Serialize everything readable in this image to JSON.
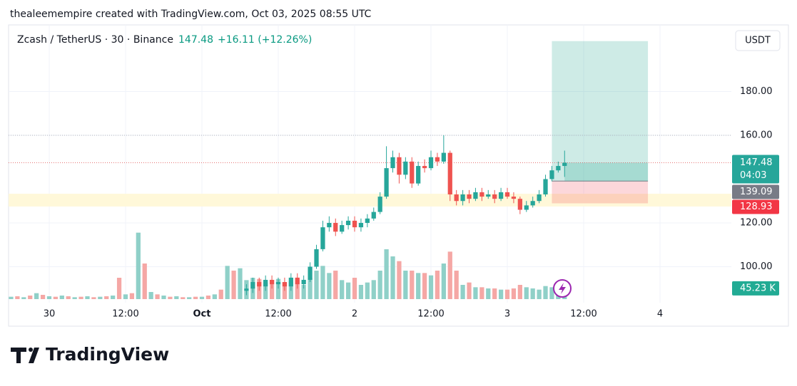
{
  "chart_data": {
    "type": "candlestick",
    "header": "thealeemempire created with TradingView.com, Oct 03, 2025 08:55 UTC",
    "title": "Zcash / TetherUS · 30 · Binance",
    "change": "+16.11 (+12.26%)",
    "countdown": "04:03",
    "currency": "USDT",
    "footer": "TradingView",
    "x": [
      31,
      32,
      33,
      34,
      35,
      36,
      37,
      38,
      39,
      40,
      41,
      42,
      43,
      44,
      45,
      46,
      47,
      48,
      49,
      50,
      51,
      52,
      53,
      54,
      55,
      56,
      57,
      58,
      59,
      60,
      61,
      62,
      63,
      64,
      65,
      66,
      67,
      68,
      69,
      70,
      71,
      72,
      73,
      74,
      75,
      76,
      77,
      78,
      79,
      80,
      81
    ],
    "open": [
      89,
      90,
      93,
      91,
      94,
      92,
      93,
      91,
      95,
      92,
      94,
      100,
      108,
      118,
      120,
      116,
      119,
      121,
      118,
      120,
      122,
      125,
      132,
      145,
      150,
      142,
      148,
      138,
      146,
      145,
      150,
      148,
      152,
      133,
      130,
      133,
      131,
      134,
      132,
      133,
      131,
      134,
      132,
      131,
      126,
      128,
      130,
      133,
      140,
      144,
      146
    ],
    "high": [
      92,
      95,
      95,
      96,
      96,
      95,
      95,
      97,
      97,
      96,
      102,
      110,
      121,
      123,
      122,
      121,
      123,
      123,
      122,
      124,
      127,
      134,
      155,
      153,
      152,
      150,
      150,
      148,
      149,
      153,
      152,
      160,
      153,
      135,
      135,
      135,
      136,
      136,
      135,
      135,
      136,
      136,
      134,
      132,
      130,
      132,
      135,
      142,
      146,
      148,
      153
    ],
    "low": [
      87,
      88,
      89,
      89,
      90,
      90,
      89,
      89,
      90,
      90,
      93,
      99,
      107,
      116,
      114,
      115,
      117,
      116,
      116,
      118,
      121,
      124,
      131,
      143,
      138,
      140,
      136,
      137,
      143,
      144,
      146,
      147,
      130,
      128,
      128,
      129,
      130,
      130,
      131,
      129,
      130,
      131,
      129,
      124,
      125,
      127,
      129,
      132,
      139,
      143,
      141
    ],
    "close": [
      90,
      93,
      91,
      94,
      92,
      93,
      91,
      95,
      92,
      94,
      100,
      108,
      118,
      120,
      116,
      119,
      121,
      118,
      120,
      122,
      125,
      132,
      145,
      150,
      142,
      148,
      138,
      146,
      145,
      150,
      148,
      152,
      133,
      130,
      133,
      131,
      134,
      132,
      133,
      131,
      134,
      132,
      131,
      126,
      128,
      130,
      133,
      140,
      144,
      146,
      147.48
    ],
    "up_color": "#26a69a",
    "down_color": "#ef5350",
    "volume": [
      {
        "name": "up",
        "color": "#8fd0c8",
        "x": [
          -6,
          -4,
          -2,
          0,
          2,
          4,
          6,
          8,
          10,
          12,
          14,
          16,
          18,
          20,
          22,
          24,
          26,
          28,
          30,
          31,
          32,
          34,
          36,
          38,
          40,
          41,
          42,
          43,
          44,
          46,
          47,
          49,
          50,
          51,
          52,
          53,
          54,
          56,
          58,
          60,
          62,
          65,
          67,
          69,
          71,
          75,
          76,
          77,
          78,
          79,
          80,
          81
        ],
        "values": [
          10,
          8,
          25,
          12,
          15,
          8,
          12,
          10,
          15,
          20,
          280,
          30,
          15,
          12,
          8,
          10,
          20,
          140,
          130,
          80,
          90,
          70,
          85,
          75,
          60,
          90,
          120,
          140,
          110,
          80,
          70,
          60,
          70,
          80,
          120,
          210,
          180,
          120,
          110,
          100,
          150,
          60,
          50,
          45,
          40,
          50,
          45,
          40,
          55,
          50,
          48,
          45.23
        ],
        "value_labels": [
          null,
          null,
          null,
          null,
          null,
          null,
          null,
          null,
          null,
          null,
          null,
          null,
          null,
          null,
          null,
          null,
          null,
          null,
          null,
          null,
          null,
          null,
          null,
          null,
          null,
          null,
          null,
          null,
          null,
          null,
          null,
          null,
          null,
          null,
          null,
          null,
          null,
          null,
          null,
          null,
          null,
          null,
          null,
          null,
          null,
          null,
          null,
          null,
          null,
          null,
          null,
          "45.23 K"
        ]
      },
      {
        "name": "down",
        "color": "#f5a7a5",
        "x": [
          -5,
          -3,
          -1,
          1,
          3,
          5,
          7,
          9,
          11,
          13,
          15,
          17,
          19,
          21,
          23,
          25,
          27,
          29,
          33,
          35,
          37,
          39,
          45,
          48,
          55,
          57,
          59,
          61,
          63,
          64,
          66,
          68,
          70,
          72,
          73,
          74
        ],
        "values": [
          12,
          15,
          18,
          10,
          12,
          10,
          8,
          12,
          90,
          25,
          150,
          20,
          10,
          8,
          10,
          15,
          40,
          120,
          85,
          80,
          70,
          80,
          120,
          90,
          160,
          120,
          110,
          120,
          200,
          120,
          70,
          50,
          45,
          40,
          45,
          60
        ]
      }
    ],
    "vlim": [
      0,
      300
    ],
    "xlim": [
      -6.39,
      107.21
    ],
    "xticks": [
      {
        "value": 0,
        "label": "30"
      },
      {
        "value": 12,
        "label": "12:00"
      },
      {
        "value": 24,
        "label": "Oct"
      },
      {
        "value": 36,
        "label": "12:00"
      },
      {
        "value": 48,
        "label": "2"
      },
      {
        "value": 60,
        "label": "12:00"
      },
      {
        "value": 72,
        "label": "3"
      },
      {
        "value": 84,
        "label": "12:00"
      },
      {
        "value": 96,
        "label": "4"
      }
    ],
    "ylim": [
      85.2,
      210.4
    ],
    "yticks": [
      {
        "value": 100,
        "label": "100.00"
      },
      {
        "value": 120,
        "label": "120.00"
      },
      {
        "value": 160,
        "label": "160.00"
      },
      {
        "value": 180,
        "label": "180.00"
      }
    ],
    "grid": true,
    "price_lines": [
      160
    ],
    "zone": [
      127.5,
      133.3
    ],
    "position": {
      "x": [
        79,
        94.1
      ],
      "target": 203,
      "entry": 139.09,
      "stop": 128.93
    }
  }
}
